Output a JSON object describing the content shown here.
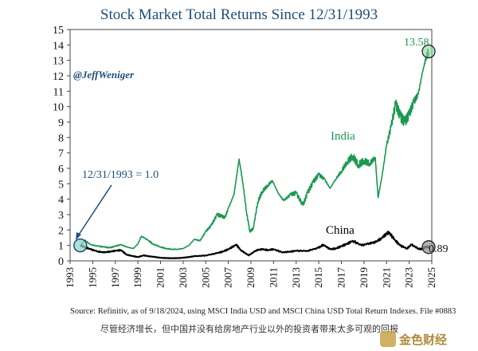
{
  "chart_data": {
    "type": "line",
    "title": "Stock Market Total Returns Since 12/31/1993",
    "handle": "@JeffWeniger",
    "xlim": [
      1993,
      2025
    ],
    "ylim": [
      0,
      15
    ],
    "x_ticks": [
      "1993",
      "1995",
      "1997",
      "1999",
      "2001",
      "2003",
      "2005",
      "2007",
      "2009",
      "2011",
      "2013",
      "2015",
      "2017",
      "2019",
      "2021",
      "2023",
      "2025"
    ],
    "y_ticks": [
      "0",
      "1",
      "2",
      "3",
      "4",
      "5",
      "6",
      "7",
      "8",
      "9",
      "10",
      "11",
      "12",
      "13",
      "14",
      "15"
    ],
    "series": [
      {
        "name": "India",
        "color": "#1a9850",
        "x": [
          1993.9,
          1994.3,
          1994.8,
          1995.5,
          1996.0,
          1996.5,
          1997.0,
          1997.5,
          1998.0,
          1998.6,
          1999.0,
          1999.3,
          2000.0,
          2000.3,
          2001.0,
          2001.5,
          2002.0,
          2002.5,
          2003.0,
          2003.5,
          2004.0,
          2004.5,
          2005.0,
          2005.5,
          2006.0,
          2006.4,
          2006.7,
          2007.0,
          2007.5,
          2007.95,
          2008.3,
          2008.6,
          2008.9,
          2009.2,
          2009.6,
          2010.0,
          2010.5,
          2010.9,
          2011.4,
          2011.9,
          2012.5,
          2013.0,
          2013.6,
          2014.0,
          2014.5,
          2015.0,
          2015.5,
          2016.0,
          2016.5,
          2017.0,
          2017.5,
          2018.0,
          2018.5,
          2019.0,
          2019.5,
          2020.0,
          2020.25,
          2020.6,
          2021.0,
          2021.4,
          2021.8,
          2022.2,
          2022.6,
          2023.0,
          2023.4,
          2023.8,
          2024.2,
          2024.5,
          2024.72
        ],
        "values": [
          1.0,
          1.35,
          1.05,
          0.95,
          0.9,
          0.85,
          0.95,
          1.05,
          0.9,
          0.8,
          1.1,
          1.6,
          1.3,
          1.1,
          0.9,
          0.8,
          0.75,
          0.75,
          0.8,
          1.0,
          1.4,
          1.3,
          1.9,
          2.3,
          3.0,
          2.9,
          2.8,
          3.4,
          4.3,
          6.6,
          5.0,
          3.2,
          1.9,
          2.1,
          3.8,
          4.5,
          4.9,
          5.2,
          4.4,
          3.9,
          4.3,
          4.4,
          3.6,
          4.4,
          5.1,
          5.6,
          5.3,
          4.7,
          5.3,
          5.8,
          6.4,
          6.8,
          6.2,
          6.5,
          6.3,
          6.7,
          4.1,
          5.5,
          7.5,
          8.7,
          10.2,
          9.4,
          9.0,
          9.5,
          10.3,
          10.8,
          12.3,
          13.2,
          13.58
        ]
      },
      {
        "name": "China",
        "color": "#000000",
        "x": [
          1993.9,
          1994.3,
          1994.8,
          1995.5,
          1996.0,
          1996.5,
          1997.0,
          1997.5,
          1998.0,
          1998.6,
          1999.0,
          1999.5,
          2000.0,
          2000.5,
          2001.0,
          2001.5,
          2002.0,
          2002.5,
          2003.0,
          2003.5,
          2004.0,
          2005.0,
          2006.0,
          2006.5,
          2007.0,
          2007.7,
          2008.1,
          2008.8,
          2009.5,
          2010.0,
          2010.5,
          2011.0,
          2011.8,
          2012.5,
          2013.0,
          2014.0,
          2015.0,
          2015.4,
          2016.0,
          2016.5,
          2017.0,
          2017.5,
          2018.0,
          2018.8,
          2019.5,
          2020.0,
          2020.5,
          2021.0,
          2021.2,
          2021.8,
          2022.2,
          2022.8,
          2023.2,
          2023.8,
          2024.1,
          2024.5,
          2024.72
        ],
        "values": [
          1.0,
          0.9,
          0.75,
          0.6,
          0.55,
          0.6,
          0.65,
          0.7,
          0.4,
          0.3,
          0.25,
          0.35,
          0.3,
          0.25,
          0.2,
          0.18,
          0.17,
          0.18,
          0.2,
          0.25,
          0.3,
          0.35,
          0.5,
          0.6,
          0.75,
          1.05,
          0.7,
          0.35,
          0.7,
          0.75,
          0.7,
          0.75,
          0.55,
          0.6,
          0.65,
          0.65,
          0.85,
          1.05,
          0.75,
          0.8,
          0.95,
          1.1,
          1.3,
          1.0,
          1.15,
          1.2,
          1.45,
          1.75,
          1.85,
          1.3,
          1.0,
          0.8,
          1.05,
          0.8,
          0.75,
          0.92,
          0.89
        ]
      }
    ],
    "annotations": {
      "start_label": "12/31/1993 = 1.0",
      "india_label": "India",
      "china_label": "China",
      "india_end": "13.58",
      "china_end": "0.89"
    },
    "source": "Source: Refinitiv, as of 9/18/2024, using MSCI India USD and MSCI China USD Total Return Indexes. File #0883",
    "caption": "尽管经济增长，但中国并没有给房地产行业以外的投资者带来太多可观的回报",
    "watermark": "金色财经"
  }
}
